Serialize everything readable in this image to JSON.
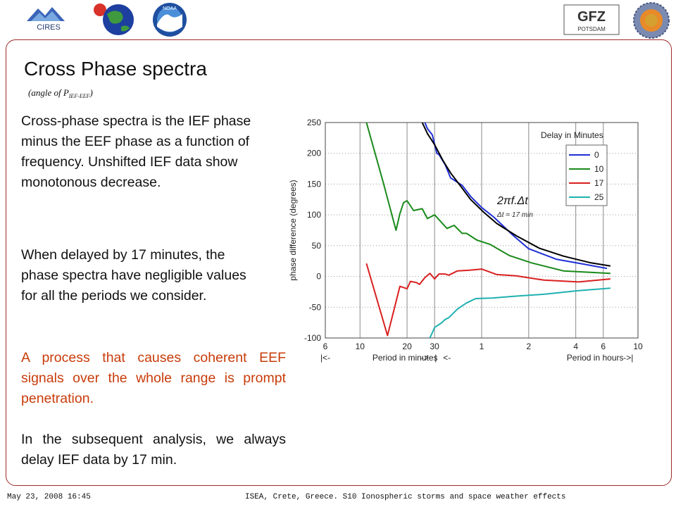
{
  "slide": {
    "title": "Cross Phase spectra",
    "subtitle_main": "(angle of P",
    "subtitle_sub": "IEF-EEF",
    "subtitle_close": ")",
    "paragraphs": [
      {
        "text": "Cross-phase spectra  is the IEF phase minus the EEF phase as a function of frequency. Unshifted IEF data show monotonous decrease.",
        "color": "#111111"
      },
      {
        "text": "When delayed by 17 minutes, the phase spectra have negligible values for all the periods we consider.",
        "color": "#111111"
      },
      {
        "text": "A process that causes coherent EEF signals over the whole range is prompt penetration.",
        "color": "#c83c0a"
      },
      {
        "text": "In the subsequent analysis, we always delay IEF data by 17 min.",
        "color": "#111111"
      }
    ]
  },
  "logos": {
    "cires_text": "CIRES",
    "noaa_text": "NOAA",
    "gfz_text": "GFZ",
    "potsdam_text": "POTSDAM"
  },
  "footer": {
    "date": "May 23, 2008 16:45",
    "event": "ISEA, Crete, Greece.  S10 Ionospheric storms and space weather effects"
  },
  "chart_data": {
    "type": "line",
    "ylabel": "phase difference (degrees)",
    "ylim": [
      -100,
      250
    ],
    "yticks": [
      250,
      200,
      150,
      100,
      50,
      0,
      -50,
      -100
    ],
    "x_scale": "log",
    "x_axis_unit": "period (minutes)",
    "xlim_minutes": [
      6,
      600
    ],
    "xticks": [
      {
        "label": "6",
        "minutes": 6
      },
      {
        "label": "10",
        "minutes": 10
      },
      {
        "label": "20",
        "minutes": 20
      },
      {
        "label": "30",
        "minutes": 30
      },
      {
        "label": "1",
        "minutes": 60
      },
      {
        "label": "2",
        "minutes": 120
      },
      {
        "label": "4",
        "minutes": 240
      },
      {
        "label": "6",
        "minutes": 360
      },
      {
        "label": "10",
        "minutes": 600
      }
    ],
    "xlabel_parts": [
      "|<-",
      "Period in minutes",
      "->",
      "|",
      "<-",
      "Period in hours",
      "->|"
    ],
    "grid": true,
    "legend_title": "Delay in Minutes",
    "legend_placement": "top-right",
    "annotation": {
      "main": "2πf.Δt",
      "sub": "Δt = 17 min"
    },
    "series": [
      {
        "name": "0",
        "color": "#1f2fd6",
        "x": [
          26,
          27,
          29,
          31,
          32,
          35,
          38,
          45,
          51,
          60,
          72,
          96,
          120,
          180,
          270,
          380
        ],
        "y": [
          250,
          240,
          230,
          200,
          198,
          182,
          160,
          148,
          130,
          112,
          96,
          66,
          45,
          28,
          20,
          13
        ]
      },
      {
        "name": "10",
        "color": "#1a8a1a",
        "x": [
          11,
          14,
          17,
          18,
          19,
          20,
          22,
          25,
          27,
          30,
          36,
          40,
          45,
          48,
          56,
          68,
          90,
          125,
          200,
          400
        ],
        "y": [
          250,
          155,
          75,
          102,
          120,
          123,
          107,
          110,
          94,
          100,
          78,
          83,
          70,
          70,
          59,
          52,
          34,
          22,
          9,
          5
        ]
      },
      {
        "name": "17",
        "color": "#d92020",
        "x": [
          11,
          15,
          18,
          20,
          21,
          23,
          24,
          26,
          28,
          30,
          32,
          35,
          37,
          42,
          50,
          60,
          75,
          100,
          150,
          250,
          400
        ],
        "y": [
          21,
          -96,
          -16,
          -20,
          -8,
          -10,
          -13,
          -2,
          5,
          -4,
          4,
          4,
          2,
          9,
          10,
          12,
          3,
          1,
          -6,
          -9,
          -4
        ]
      },
      {
        "name": "25",
        "color": "#20b0b0",
        "x": [
          28,
          30,
          33,
          35,
          37,
          42,
          48,
          55,
          70,
          100,
          150,
          250,
          400
        ],
        "y": [
          -100,
          -83,
          -76,
          -70,
          -67,
          -53,
          -43,
          -36,
          -35,
          -32,
          -29,
          -23,
          -19
        ]
      },
      {
        "name": "",
        "color": "#000000",
        "x": [
          25,
          27,
          30,
          34,
          38,
          43,
          51,
          62,
          75,
          100,
          140,
          200,
          300,
          400
        ],
        "y": [
          250,
          232,
          214,
          188,
          168,
          150,
          125,
          104,
          86,
          66,
          46,
          33,
          22,
          17
        ]
      }
    ]
  }
}
